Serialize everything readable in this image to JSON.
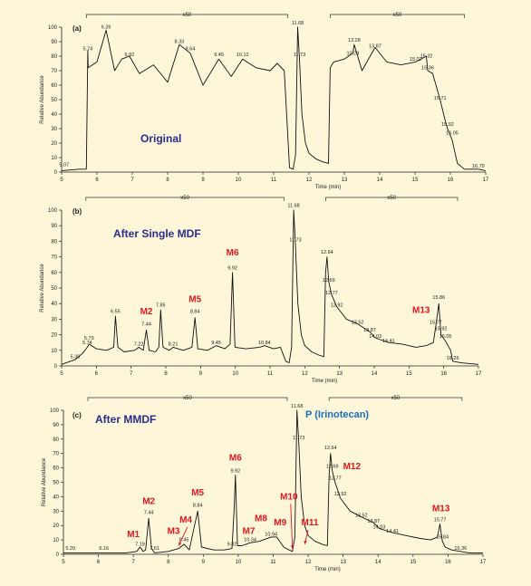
{
  "chart_data": [
    {
      "type": "line",
      "panel_label": "(a)",
      "title": "Original",
      "xlabel": "Time (min)",
      "ylabel": "Relative Abundance",
      "xlim": [
        5,
        17
      ],
      "ylim": [
        0,
        100
      ],
      "x_ticks": [
        "5",
        "6",
        "7",
        "8",
        "9",
        "10",
        "11",
        "12",
        "13",
        "14",
        "15",
        "16",
        "17"
      ],
      "y_ticks": [
        "0",
        "10",
        "20",
        "30",
        "40",
        "50",
        "60",
        "70",
        "80",
        "90",
        "100"
      ],
      "zoom_brackets": [
        {
          "label": "x50",
          "from": 5.7,
          "to": 11.4
        },
        {
          "label": "x50",
          "from": 12.6,
          "to": 16.4
        }
      ],
      "peak_labels": [
        {
          "text": "5.07",
          "x": 5.07,
          "y": 4
        },
        {
          "text": "5.74",
          "x": 5.74,
          "y": 84
        },
        {
          "text": "6.26",
          "x": 6.26,
          "y": 99
        },
        {
          "text": "6.92",
          "x": 6.92,
          "y": 80
        },
        {
          "text": "8.33",
          "x": 8.33,
          "y": 89
        },
        {
          "text": "8.64",
          "x": 8.64,
          "y": 84
        },
        {
          "text": "9.45",
          "x": 9.45,
          "y": 80
        },
        {
          "text": "10.12",
          "x": 10.12,
          "y": 80
        },
        {
          "text": "11.68",
          "x": 11.68,
          "y": 102
        },
        {
          "text": "11.73",
          "x": 11.73,
          "y": 80
        },
        {
          "text": "13.28",
          "x": 13.28,
          "y": 90
        },
        {
          "text": "13.24",
          "x": 13.24,
          "y": 81
        },
        {
          "text": "13.87",
          "x": 13.87,
          "y": 86
        },
        {
          "text": "15.02",
          "x": 15.02,
          "y": 77
        },
        {
          "text": "15.32",
          "x": 15.32,
          "y": 79
        },
        {
          "text": "15.36",
          "x": 15.36,
          "y": 71
        },
        {
          "text": "15.71",
          "x": 15.71,
          "y": 50
        },
        {
          "text": "15.92",
          "x": 15.92,
          "y": 32
        },
        {
          "text": "16.05",
          "x": 16.05,
          "y": 26
        },
        {
          "text": "16.79",
          "x": 16.79,
          "y": 3
        }
      ],
      "metabolite_labels": [],
      "series": [
        {
          "x": [
            5,
            5.5,
            5.7,
            5.74,
            5.75,
            6.0,
            6.26,
            6.5,
            6.7,
            6.92,
            7.2,
            7.6,
            8.0,
            8.33,
            8.64,
            9.0,
            9.45,
            9.8,
            10.12,
            10.5,
            10.9,
            11.1,
            11.3,
            11.45,
            11.55,
            11.62,
            11.68,
            11.73,
            11.8,
            11.9,
            12.0,
            12.2,
            12.4,
            12.55,
            12.6,
            12.7,
            13.0,
            13.24,
            13.28,
            13.5,
            13.87,
            14.2,
            14.6,
            15.02,
            15.32,
            15.36,
            15.5,
            15.71,
            15.85,
            15.92,
            16.05,
            16.2,
            16.4,
            16.79,
            17
          ],
          "y": [
            1,
            2,
            2,
            84,
            72,
            76,
            98,
            70,
            78,
            80,
            68,
            74,
            62,
            88,
            82,
            60,
            78,
            66,
            78,
            72,
            70,
            75,
            70,
            3,
            2,
            12,
            100,
            78,
            40,
            20,
            13,
            9,
            7,
            6,
            72,
            76,
            78,
            82,
            88,
            70,
            86,
            76,
            74,
            76,
            80,
            70,
            68,
            50,
            36,
            30,
            22,
            6,
            2,
            2,
            1
          ]
        }
      ]
    },
    {
      "type": "line",
      "panel_label": "(b)",
      "title": "After Single MDF",
      "xlabel": "Time (min)",
      "ylabel": "Relative Abundance",
      "xlim": [
        5,
        17
      ],
      "ylim": [
        0,
        100
      ],
      "x_ticks": [
        "5",
        "6",
        "7",
        "8",
        "9",
        "10",
        "11",
        "12",
        "13",
        "14",
        "15",
        "16",
        "17"
      ],
      "y_ticks": [
        "0",
        "10",
        "20",
        "30",
        "40",
        "50",
        "60",
        "70",
        "80",
        "90",
        "100"
      ],
      "zoom_brackets": [
        {
          "label": "x50",
          "from": 5.7,
          "to": 11.4
        },
        {
          "label": "x50",
          "from": 12.6,
          "to": 16.4
        }
      ],
      "peak_labels": [
        {
          "text": "5.39",
          "x": 5.39,
          "y": 5
        },
        {
          "text": "5.74",
          "x": 5.74,
          "y": 14
        },
        {
          "text": "5.79",
          "x": 5.79,
          "y": 17
        },
        {
          "text": "6.55",
          "x": 6.55,
          "y": 34
        },
        {
          "text": "7.22",
          "x": 7.22,
          "y": 13
        },
        {
          "text": "7.44",
          "x": 7.44,
          "y": 26
        },
        {
          "text": "7.85",
          "x": 7.85,
          "y": 38
        },
        {
          "text": "8.21",
          "x": 8.21,
          "y": 13
        },
        {
          "text": "8.84",
          "x": 8.84,
          "y": 34
        },
        {
          "text": "9.45",
          "x": 9.45,
          "y": 14
        },
        {
          "text": "9.92",
          "x": 9.92,
          "y": 62
        },
        {
          "text": "10.84",
          "x": 10.84,
          "y": 14
        },
        {
          "text": "11.68",
          "x": 11.68,
          "y": 102
        },
        {
          "text": "11.73",
          "x": 11.73,
          "y": 80
        },
        {
          "text": "12.64",
          "x": 12.64,
          "y": 72
        },
        {
          "text": "12.69",
          "x": 12.69,
          "y": 54
        },
        {
          "text": "12.77",
          "x": 12.77,
          "y": 46
        },
        {
          "text": "12.92",
          "x": 12.92,
          "y": 38
        },
        {
          "text": "13.52",
          "x": 13.52,
          "y": 27
        },
        {
          "text": "13.87",
          "x": 13.87,
          "y": 22
        },
        {
          "text": "14.03",
          "x": 14.03,
          "y": 18
        },
        {
          "text": "14.41",
          "x": 14.41,
          "y": 15
        },
        {
          "text": "15.77",
          "x": 15.77,
          "y": 27
        },
        {
          "text": "15.86",
          "x": 15.86,
          "y": 43
        },
        {
          "text": "15.92",
          "x": 15.92,
          "y": 23
        },
        {
          "text": "16.05",
          "x": 16.05,
          "y": 18
        },
        {
          "text": "16.26",
          "x": 16.26,
          "y": 4
        }
      ],
      "metabolite_labels": [
        {
          "text": "M2",
          "x": 7.44,
          "y": 33
        },
        {
          "text": "M5",
          "x": 8.84,
          "y": 41
        },
        {
          "text": "M6",
          "x": 9.92,
          "y": 71
        },
        {
          "text": "M13",
          "x": 15.35,
          "y": 34
        }
      ],
      "series": [
        {
          "x": [
            5,
            5.39,
            5.6,
            5.74,
            5.79,
            6.0,
            6.3,
            6.5,
            6.55,
            6.62,
            6.8,
            7.1,
            7.22,
            7.35,
            7.44,
            7.52,
            7.7,
            7.8,
            7.85,
            7.92,
            8.1,
            8.21,
            8.5,
            8.75,
            8.84,
            8.92,
            9.2,
            9.45,
            9.7,
            9.85,
            9.92,
            9.99,
            10.3,
            10.7,
            10.84,
            11.1,
            11.3,
            11.45,
            11.55,
            11.62,
            11.68,
            11.73,
            11.8,
            11.9,
            12.0,
            12.2,
            12.4,
            12.55,
            12.6,
            12.64,
            12.69,
            12.77,
            12.92,
            13.2,
            13.52,
            13.87,
            14.03,
            14.41,
            14.8,
            15.2,
            15.5,
            15.7,
            15.77,
            15.86,
            15.92,
            16.05,
            16.2,
            16.26,
            16.5,
            17
          ],
          "y": [
            1,
            4,
            8,
            12,
            14,
            11,
            10,
            12,
            32,
            12,
            9,
            10,
            12,
            10,
            23,
            10,
            9,
            12,
            36,
            12,
            10,
            12,
            10,
            12,
            31,
            11,
            10,
            13,
            11,
            14,
            60,
            12,
            11,
            12,
            13,
            11,
            12,
            3,
            2,
            12,
            100,
            78,
            40,
            20,
            13,
            9,
            7,
            6,
            60,
            70,
            54,
            46,
            38,
            30,
            27,
            22,
            18,
            15,
            14,
            12,
            13,
            15,
            25,
            40,
            20,
            16,
            10,
            3,
            2,
            1
          ]
        }
      ]
    },
    {
      "type": "line",
      "panel_label": "(c)",
      "title": "After MMDF",
      "xlabel": "Time (min)",
      "ylabel": "Relative Abundance",
      "xlim": [
        5,
        17
      ],
      "ylim": [
        0,
        100
      ],
      "x_ticks": [
        "5",
        "6",
        "7",
        "8",
        "9",
        "10",
        "11",
        "12",
        "13",
        "14",
        "15",
        "16",
        "17"
      ],
      "y_ticks": [
        "0",
        "10",
        "20",
        "30",
        "40",
        "50",
        "60",
        "70",
        "80",
        "90",
        "100"
      ],
      "zoom_brackets": [
        {
          "label": "x50",
          "from": 5.7,
          "to": 11.4
        },
        {
          "label": "x50",
          "from": 12.6,
          "to": 16.4
        }
      ],
      "annotation": "P (Irinotecan)",
      "peak_labels": [
        {
          "text": "5.20",
          "x": 5.2,
          "y": 3
        },
        {
          "text": "6.16",
          "x": 6.16,
          "y": 3
        },
        {
          "text": "7.19",
          "x": 7.19,
          "y": 6
        },
        {
          "text": "7.44",
          "x": 7.44,
          "y": 28
        },
        {
          "text": "7.61",
          "x": 7.61,
          "y": 3
        },
        {
          "text": "8.45",
          "x": 8.45,
          "y": 9
        },
        {
          "text": "8.84",
          "x": 8.84,
          "y": 33
        },
        {
          "text": "9.82",
          "x": 9.82,
          "y": 6
        },
        {
          "text": "9.92",
          "x": 9.92,
          "y": 57
        },
        {
          "text": "10.34",
          "x": 10.34,
          "y": 9
        },
        {
          "text": "10.94",
          "x": 10.94,
          "y": 13
        },
        {
          "text": "11.68",
          "x": 11.68,
          "y": 102
        },
        {
          "text": "11.73",
          "x": 11.73,
          "y": 80
        },
        {
          "text": "12.64",
          "x": 12.64,
          "y": 73
        },
        {
          "text": "12.69",
          "x": 12.69,
          "y": 60
        },
        {
          "text": "12.77",
          "x": 12.77,
          "y": 52
        },
        {
          "text": "12.92",
          "x": 12.92,
          "y": 41
        },
        {
          "text": "13.52",
          "x": 13.52,
          "y": 26
        },
        {
          "text": "13.87",
          "x": 13.87,
          "y": 22
        },
        {
          "text": "14.03",
          "x": 14.03,
          "y": 18
        },
        {
          "text": "14.41",
          "x": 14.41,
          "y": 15
        },
        {
          "text": "15.77",
          "x": 15.77,
          "y": 23
        },
        {
          "text": "15.84",
          "x": 15.84,
          "y": 11
        },
        {
          "text": "16.36",
          "x": 16.36,
          "y": 3
        }
      ],
      "metabolite_labels": [
        {
          "text": "M1",
          "x": 7.0,
          "y": 12
        },
        {
          "text": "M2",
          "x": 7.44,
          "y": 35
        },
        {
          "text": "M3",
          "x": 8.15,
          "y": 14
        },
        {
          "text": "M4",
          "x": 8.5,
          "y": 22
        },
        {
          "text": "M5",
          "x": 8.84,
          "y": 41
        },
        {
          "text": "M6",
          "x": 9.92,
          "y": 65
        },
        {
          "text": "M7",
          "x": 10.3,
          "y": 14
        },
        {
          "text": "M8",
          "x": 10.65,
          "y": 23
        },
        {
          "text": "M9",
          "x": 11.2,
          "y": 20
        },
        {
          "text": "M10",
          "x": 11.45,
          "y": 38
        },
        {
          "text": "M11",
          "x": 12.05,
          "y": 20
        },
        {
          "text": "M12",
          "x": 13.25,
          "y": 59
        },
        {
          "text": "M13",
          "x": 15.8,
          "y": 30
        }
      ],
      "series": [
        {
          "x": [
            5,
            5.2,
            6,
            6.16,
            6.8,
            7.1,
            7.19,
            7.28,
            7.35,
            7.44,
            7.52,
            7.61,
            8.0,
            8.3,
            8.45,
            8.6,
            8.75,
            8.84,
            8.95,
            9.3,
            9.6,
            9.82,
            9.88,
            9.92,
            9.98,
            10.1,
            10.34,
            10.6,
            10.94,
            11.1,
            11.3,
            11.45,
            11.55,
            11.62,
            11.68,
            11.73,
            11.8,
            11.9,
            12.0,
            12.2,
            12.4,
            12.55,
            12.6,
            12.64,
            12.69,
            12.77,
            12.92,
            13.2,
            13.52,
            13.87,
            14.03,
            14.41,
            14.8,
            15.2,
            15.5,
            15.7,
            15.77,
            15.84,
            15.92,
            16.1,
            16.36,
            16.6,
            17
          ],
          "y": [
            1,
            1,
            1,
            1,
            1,
            2,
            5,
            2,
            3,
            25,
            4,
            1,
            2,
            4,
            7,
            3,
            20,
            30,
            5,
            3,
            3,
            4,
            30,
            55,
            6,
            6,
            8,
            9,
            12,
            12,
            5,
            3,
            2,
            12,
            100,
            78,
            40,
            20,
            13,
            9,
            7,
            6,
            55,
            70,
            58,
            50,
            39,
            30,
            26,
            22,
            18,
            15,
            13,
            11,
            10,
            12,
            21,
            9,
            5,
            3,
            2,
            1,
            1
          ]
        }
      ]
    }
  ]
}
